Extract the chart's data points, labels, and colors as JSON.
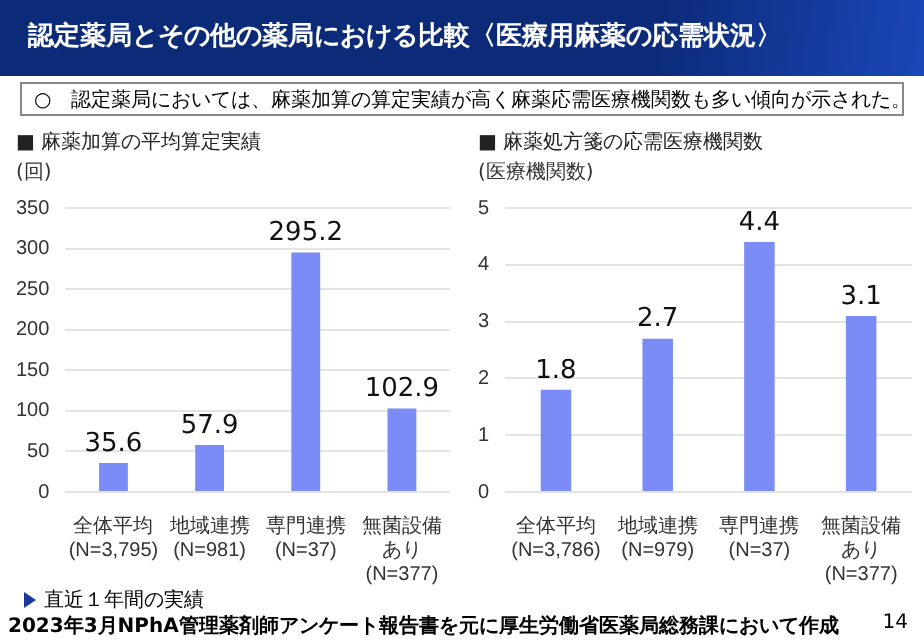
{
  "chart_data": [
    {
      "type": "bar",
      "title": "■ 麻薬加算の平均算定実績",
      "ylabel": "(回)",
      "categories": [
        "全体平均\n(N=3,795)",
        "地域連携\n(N=981)",
        "専門連携\n(N=37)",
        "無菌設備あり\n(N=377)"
      ],
      "values": [
        35.6,
        57.9,
        295.2,
        102.9
      ],
      "color": "#7b8cf7",
      "ylim": [
        0,
        350
      ],
      "yticks": [
        0,
        50,
        100,
        150,
        200,
        250,
        300,
        350
      ],
      "grid": "y",
      "data_labels": true,
      "annotations": [
        "認定薬局とその他の薬局における比較〈医療用麻薬の応需状況〉",
        "○　認定薬局においては、麻薬加算の算定実績が高く麻薬応需医療機関数も多い傾向が示された。",
        "直近１年間の実績",
        "2023年3月NPhA管理薬剤師アンケート報告書を元に厚生労働省医薬局総務課において作成",
        "14"
      ]
    },
    {
      "type": "bar",
      "title": "■ 麻薬処方箋の応需医療機関数",
      "ylabel": "(医療機関数)",
      "categories": [
        "全体平均\n(N=3,786)",
        "地域連携\n(N=979)",
        "専門連携\n(N=37)",
        "無菌設備あり\n(N=377)"
      ],
      "values": [
        1.8,
        2.7,
        4.4,
        3.1
      ],
      "color": "#7b8cf7",
      "ylim": [
        0,
        5
      ],
      "yticks": [
        0,
        1,
        2,
        3,
        4,
        5
      ],
      "grid": "y",
      "data_labels": true
    }
  ]
}
